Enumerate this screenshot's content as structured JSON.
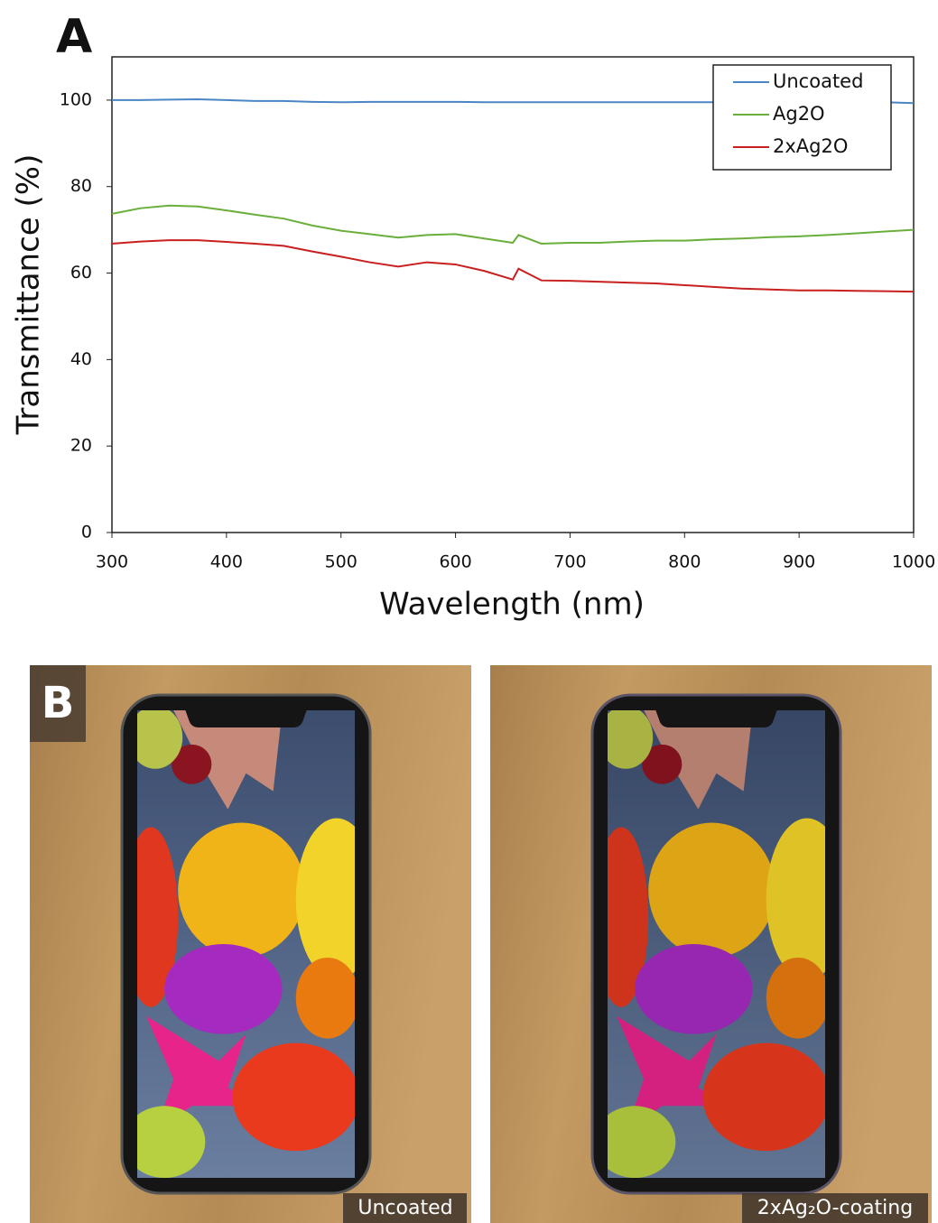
{
  "panel_labels": [
    "A",
    "B"
  ],
  "chart_data": {
    "type": "line",
    "xlabel": "Wavelength (nm)",
    "ylabel": "Transmittance (%)",
    "x": [
      300,
      325,
      350,
      375,
      400,
      425,
      450,
      475,
      500,
      525,
      550,
      575,
      600,
      625,
      650,
      655,
      675,
      700,
      725,
      750,
      775,
      800,
      825,
      850,
      875,
      900,
      925,
      950,
      975,
      1000
    ],
    "series": [
      {
        "name": "Uncoated",
        "color": "#4a86c5",
        "values": [
          100,
          100,
          100.1,
          100.2,
          100,
          99.8,
          99.8,
          99.6,
          99.5,
          99.6,
          99.6,
          99.6,
          99.6,
          99.5,
          99.5,
          99.5,
          99.5,
          99.5,
          99.5,
          99.5,
          99.5,
          99.5,
          99.5,
          99.5,
          99.5,
          99.5,
          99.5,
          99.5,
          99.5,
          99.3
        ]
      },
      {
        "name": "Ag2O",
        "color": "#6aaf3c",
        "values": [
          73.7,
          75,
          75.6,
          75.4,
          74.5,
          73.5,
          72.6,
          71,
          69.8,
          69,
          68.2,
          68.8,
          69,
          68,
          67,
          68.8,
          66.8,
          67,
          67,
          67.3,
          67.5,
          67.5,
          67.8,
          68,
          68.3,
          68.5,
          68.8,
          69.2,
          69.6,
          70
        ]
      },
      {
        "name": "2xAg2O",
        "color": "#c8201e",
        "values": [
          66.8,
          67.3,
          67.6,
          67.6,
          67.2,
          66.8,
          66.3,
          65,
          63.8,
          62.5,
          61.5,
          62.5,
          62,
          60.5,
          58.5,
          61,
          58.3,
          58.2,
          58,
          57.8,
          57.6,
          57.2,
          56.8,
          56.4,
          56.2,
          56,
          56,
          55.9,
          55.8,
          55.7
        ]
      }
    ],
    "xlim": [
      300,
      1000
    ],
    "xticks": [
      300,
      400,
      500,
      600,
      700,
      800,
      900,
      1000
    ],
    "ylim": [
      0,
      110
    ],
    "yticks": [
      0,
      20,
      40,
      60,
      80,
      100
    ],
    "grid": false,
    "legend": "upper right"
  },
  "photos": [
    {
      "caption": "Uncoated"
    },
    {
      "caption": "2xAg₂O-coating"
    }
  ]
}
